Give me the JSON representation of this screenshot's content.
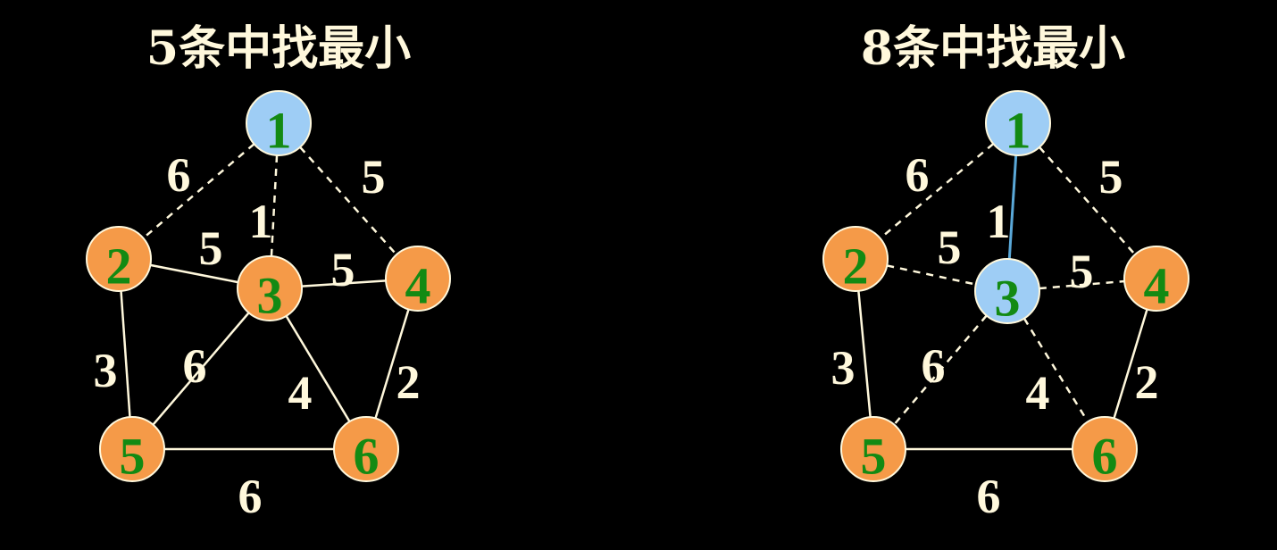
{
  "colors": {
    "background": "#000000",
    "text": "#FFF8DC",
    "edge": "#FFF8DC",
    "selected_edge": "#5AA8D8",
    "in_tree_node": "#9ECDF5",
    "outside_node": "#F59A48",
    "node_label": "#138A13",
    "node_stroke": "#FFF8DC"
  },
  "graphs": [
    {
      "title": "5条中找最小",
      "nodes": [
        {
          "id": "1",
          "in_tree": true
        },
        {
          "id": "2",
          "in_tree": false
        },
        {
          "id": "3",
          "in_tree": false
        },
        {
          "id": "4",
          "in_tree": false
        },
        {
          "id": "5",
          "in_tree": false
        },
        {
          "id": "6",
          "in_tree": false
        }
      ],
      "edges": [
        {
          "from": "1",
          "to": "2",
          "weight": "6",
          "style": "candidate"
        },
        {
          "from": "1",
          "to": "3",
          "weight": "1",
          "style": "candidate"
        },
        {
          "from": "1",
          "to": "4",
          "weight": "5",
          "style": "candidate"
        },
        {
          "from": "2",
          "to": "3",
          "weight": "5",
          "style": "normal"
        },
        {
          "from": "3",
          "to": "4",
          "weight": "5",
          "style": "normal"
        },
        {
          "from": "2",
          "to": "5",
          "weight": "3",
          "style": "normal"
        },
        {
          "from": "3",
          "to": "5",
          "weight": "6",
          "style": "normal"
        },
        {
          "from": "3",
          "to": "6",
          "weight": "4",
          "style": "normal"
        },
        {
          "from": "4",
          "to": "6",
          "weight": "2",
          "style": "normal"
        },
        {
          "from": "5",
          "to": "6",
          "weight": "6",
          "style": "normal"
        }
      ]
    },
    {
      "title": "8条中找最小",
      "nodes": [
        {
          "id": "1",
          "in_tree": true
        },
        {
          "id": "2",
          "in_tree": false
        },
        {
          "id": "3",
          "in_tree": true
        },
        {
          "id": "4",
          "in_tree": false
        },
        {
          "id": "5",
          "in_tree": false
        },
        {
          "id": "6",
          "in_tree": false
        }
      ],
      "edges": [
        {
          "from": "1",
          "to": "2",
          "weight": "6",
          "style": "candidate"
        },
        {
          "from": "1",
          "to": "3",
          "weight": "1",
          "style": "selected"
        },
        {
          "from": "1",
          "to": "4",
          "weight": "5",
          "style": "candidate"
        },
        {
          "from": "2",
          "to": "3",
          "weight": "5",
          "style": "candidate"
        },
        {
          "from": "3",
          "to": "4",
          "weight": "5",
          "style": "candidate"
        },
        {
          "from": "2",
          "to": "5",
          "weight": "3",
          "style": "normal"
        },
        {
          "from": "3",
          "to": "5",
          "weight": "6",
          "style": "candidate"
        },
        {
          "from": "3",
          "to": "6",
          "weight": "4",
          "style": "candidate"
        },
        {
          "from": "4",
          "to": "6",
          "weight": "2",
          "style": "normal"
        },
        {
          "from": "5",
          "to": "6",
          "weight": "6",
          "style": "normal"
        }
      ]
    }
  ]
}
